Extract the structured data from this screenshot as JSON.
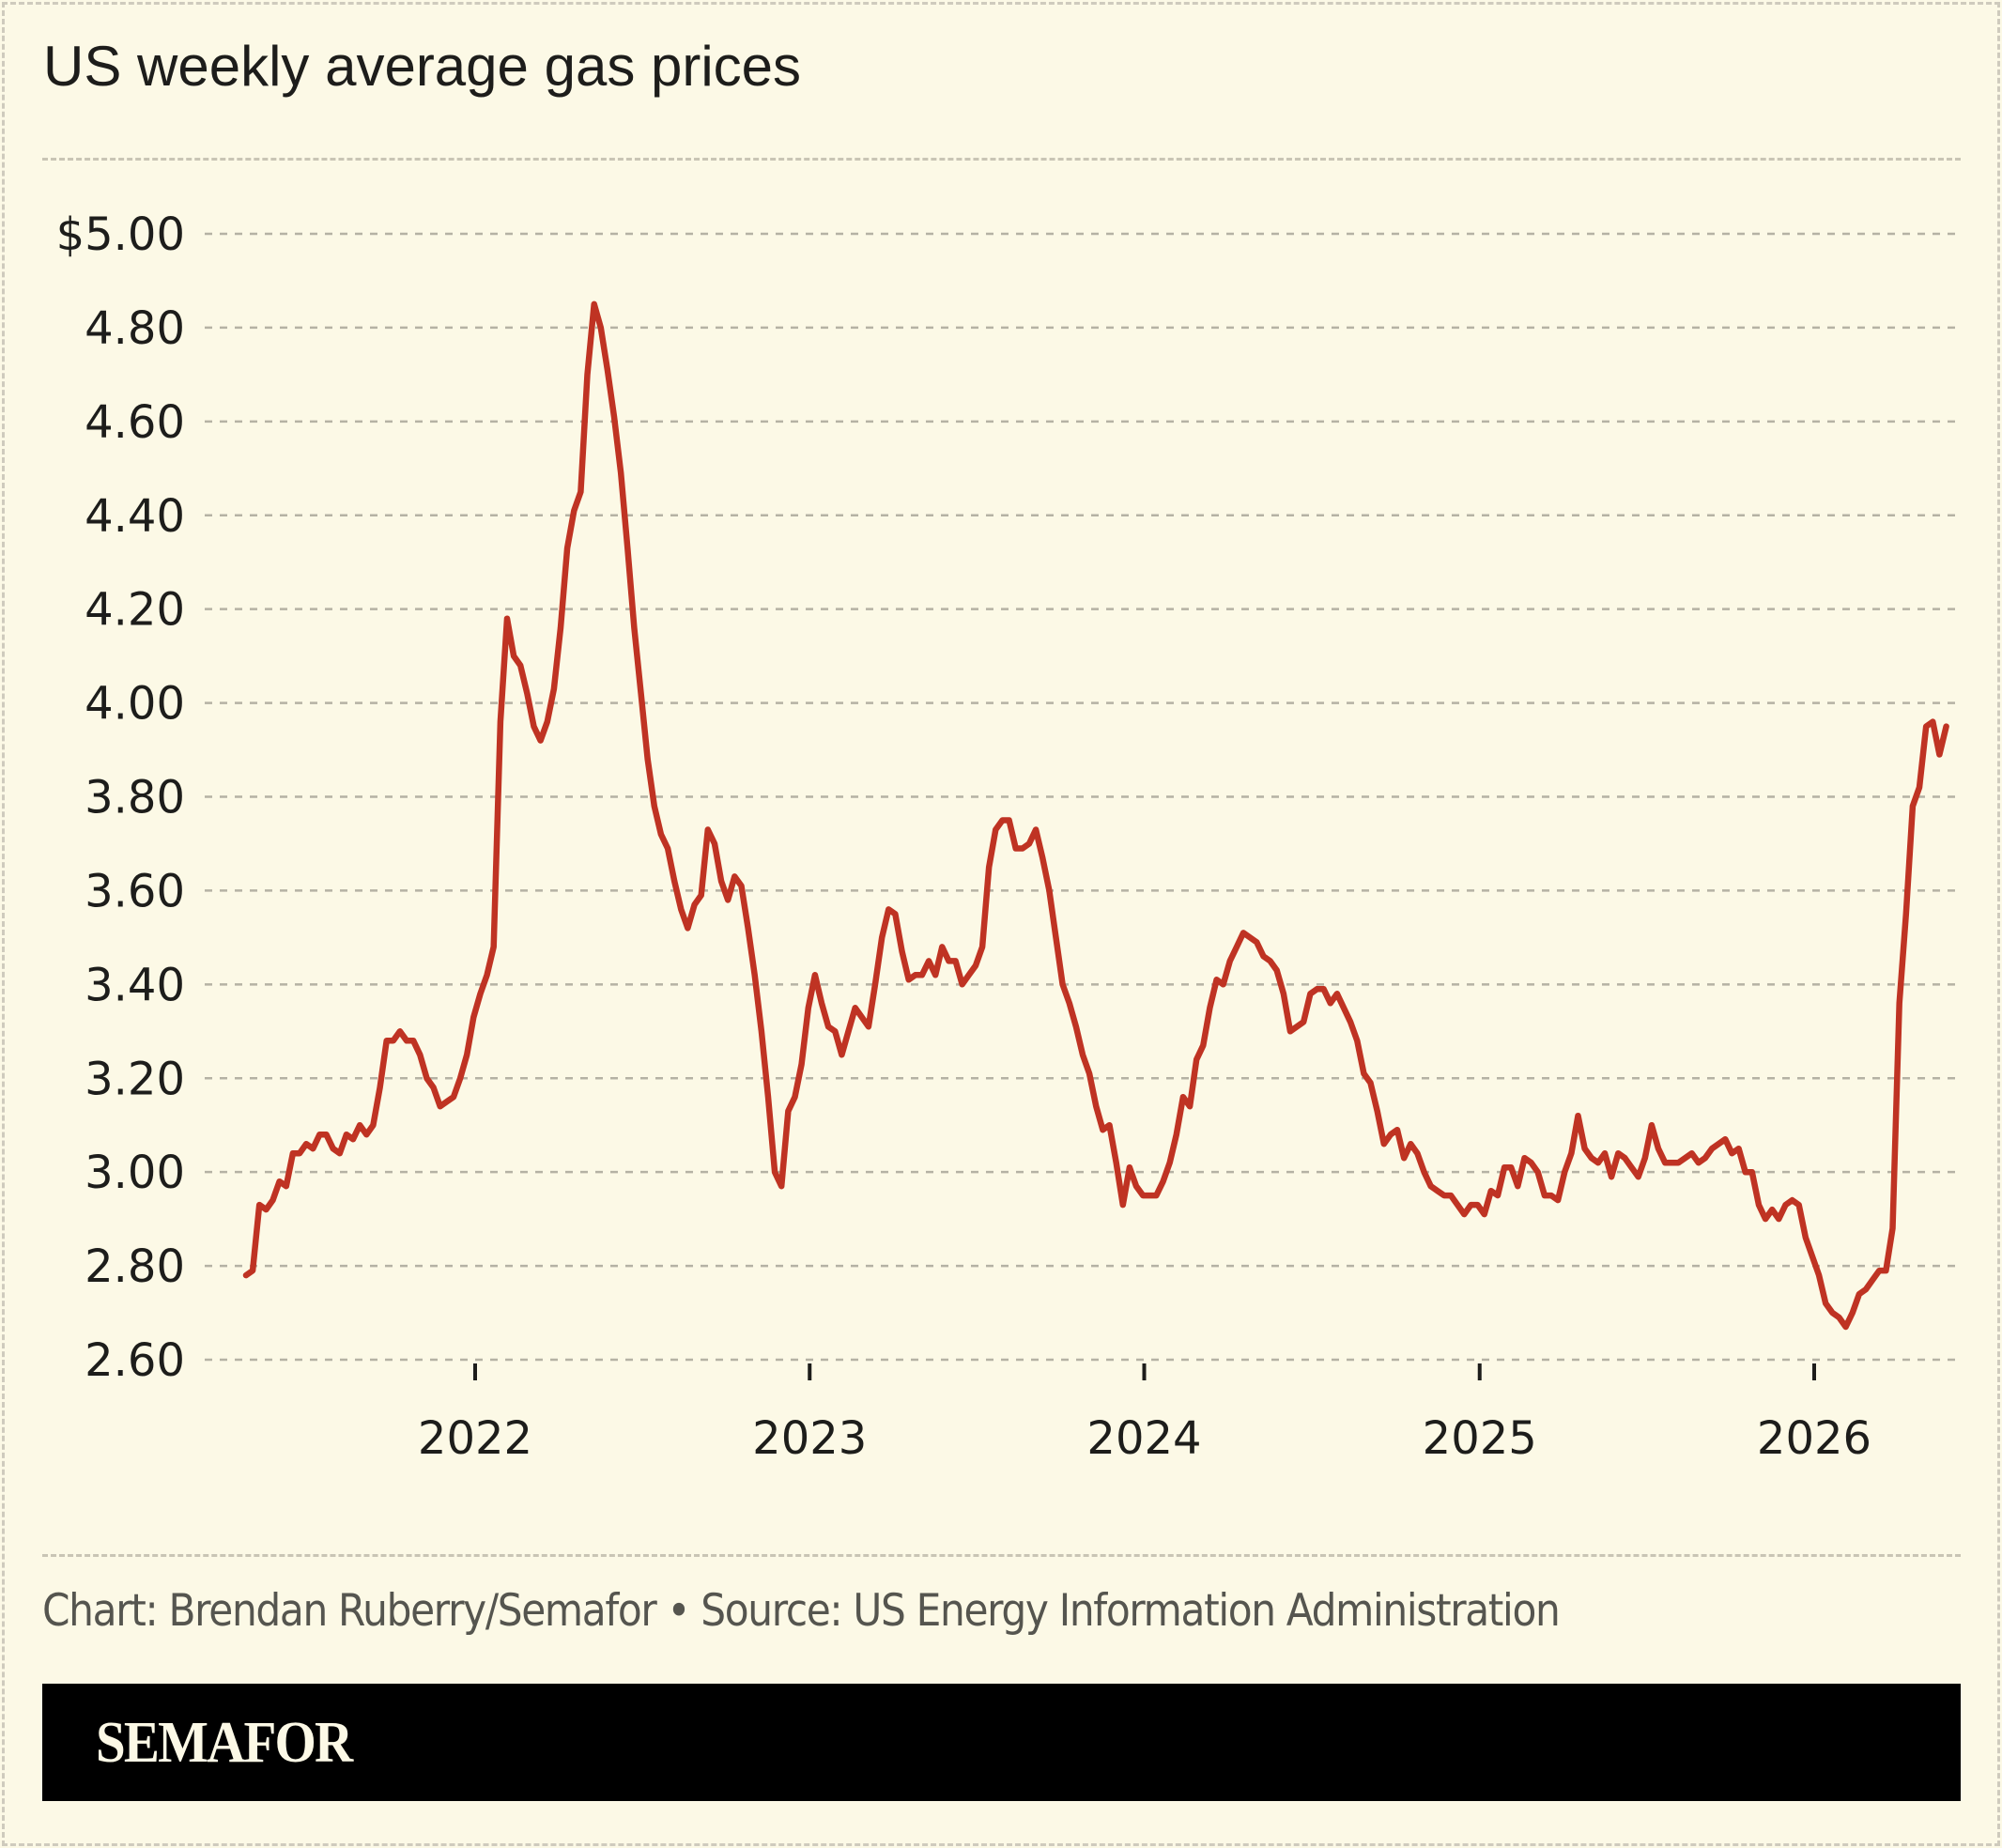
{
  "colors": {
    "background": "#fcf9e6",
    "line": "#bf3323",
    "grid": "#b5b2a4",
    "footer_bar": "#000000",
    "logo_text": "#fcf9e6"
  },
  "header": {
    "title": "US weekly average gas prices"
  },
  "footer": {
    "source": "Chart: Brendan Ruberry/Semafor • Source: US Energy Information Administration",
    "logo": "SEMAFOR"
  },
  "chart_data": {
    "type": "line",
    "title": "US weekly average gas prices",
    "xlabel": "",
    "ylabel": "",
    "ylim": [
      2.6,
      5.0
    ],
    "grid": "horizontal dashed",
    "y_ticks": [
      {
        "value": 5.0,
        "label": "$5.00"
      },
      {
        "value": 4.8,
        "label": "4.80"
      },
      {
        "value": 4.6,
        "label": "4.60"
      },
      {
        "value": 4.4,
        "label": "4.40"
      },
      {
        "value": 4.2,
        "label": "4.20"
      },
      {
        "value": 4.0,
        "label": "4.00"
      },
      {
        "value": 3.8,
        "label": "3.80"
      },
      {
        "value": 3.6,
        "label": "3.60"
      },
      {
        "value": 3.4,
        "label": "3.40"
      },
      {
        "value": 3.2,
        "label": "3.20"
      },
      {
        "value": 3.0,
        "label": "3.00"
      },
      {
        "value": 2.8,
        "label": "2.80"
      },
      {
        "value": 2.6,
        "label": "2.60"
      }
    ],
    "x_ticks": [
      {
        "date": "2022-01-01",
        "label": "2022"
      },
      {
        "date": "2023-01-01",
        "label": "2023"
      },
      {
        "date": "2024-01-01",
        "label": "2024"
      },
      {
        "date": "2025-01-01",
        "label": "2025"
      },
      {
        "date": "2026-01-01",
        "label": "2026"
      }
    ],
    "x_range": [
      "2021-03-15",
      "2026-06-15"
    ],
    "frequency": "weekly",
    "x_first": "2021-04-26",
    "x_last": "2026-05-25",
    "series": [
      {
        "values": [
          2.78,
          2.79,
          2.93,
          2.92,
          2.94,
          2.98,
          2.97,
          3.04,
          3.04,
          3.06,
          3.05,
          3.08,
          3.08,
          3.05,
          3.04,
          3.08,
          3.07,
          3.1,
          3.08,
          3.1,
          3.18,
          3.28,
          3.28,
          3.3,
          3.28,
          3.28,
          3.25,
          3.2,
          3.18,
          3.14,
          3.15,
          3.16,
          3.2,
          3.25,
          3.33,
          3.38,
          3.42,
          3.48,
          3.96,
          4.18,
          4.1,
          4.08,
          4.02,
          3.95,
          3.92,
          3.96,
          4.03,
          4.16,
          4.33,
          4.41,
          4.45,
          4.7,
          4.85,
          4.8,
          4.71,
          4.61,
          4.49,
          4.33,
          4.16,
          4.02,
          3.88,
          3.78,
          3.72,
          3.69,
          3.62,
          3.56,
          3.52,
          3.57,
          3.59,
          3.73,
          3.7,
          3.62,
          3.58,
          3.63,
          3.61,
          3.52,
          3.42,
          3.3,
          3.16,
          3.0,
          2.97,
          3.13,
          3.16,
          3.23,
          3.35,
          3.42,
          3.36,
          3.31,
          3.3,
          3.25,
          3.3,
          3.35,
          3.33,
          3.31,
          3.4,
          3.5,
          3.56,
          3.55,
          3.47,
          3.41,
          3.42,
          3.42,
          3.45,
          3.42,
          3.48,
          3.45,
          3.45,
          3.4,
          3.42,
          3.44,
          3.48,
          3.65,
          3.73,
          3.75,
          3.75,
          3.69,
          3.69,
          3.7,
          3.73,
          3.67,
          3.6,
          3.5,
          3.4,
          3.36,
          3.31,
          3.25,
          3.21,
          3.14,
          3.09,
          3.1,
          3.02,
          2.93,
          3.01,
          2.97,
          2.95,
          2.95,
          2.95,
          2.98,
          3.02,
          3.08,
          3.16,
          3.14,
          3.24,
          3.27,
          3.35,
          3.41,
          3.4,
          3.45,
          3.48,
          3.51,
          3.5,
          3.49,
          3.46,
          3.45,
          3.43,
          3.38,
          3.3,
          3.31,
          3.32,
          3.38,
          3.39,
          3.39,
          3.36,
          3.38,
          3.35,
          3.32,
          3.28,
          3.21,
          3.19,
          3.13,
          3.06,
          3.08,
          3.09,
          3.03,
          3.06,
          3.04,
          3.0,
          2.97,
          2.96,
          2.95,
          2.95,
          2.93,
          2.91,
          2.93,
          2.93,
          2.91,
          2.96,
          2.95,
          3.01,
          3.01,
          2.97,
          3.03,
          3.02,
          3.0,
          2.95,
          2.95,
          2.94,
          3.0,
          3.04,
          3.12,
          3.05,
          3.03,
          3.02,
          3.04,
          2.99,
          3.04,
          3.03,
          3.01,
          2.99,
          3.03,
          3.1,
          3.05,
          3.02,
          3.02,
          3.02,
          3.03,
          3.04,
          3.02,
          3.03,
          3.05,
          3.06,
          3.07,
          3.04,
          3.05,
          3.0,
          3.0,
          2.93,
          2.9,
          2.92,
          2.9,
          2.93,
          2.94,
          2.93,
          2.86,
          2.82,
          2.78,
          2.72,
          2.7,
          2.69,
          2.67,
          2.7,
          2.74,
          2.75,
          2.77,
          2.79,
          2.79,
          2.88,
          3.36,
          3.55,
          3.78,
          3.82,
          3.95,
          3.96,
          3.89,
          3.95
        ]
      }
    ]
  }
}
